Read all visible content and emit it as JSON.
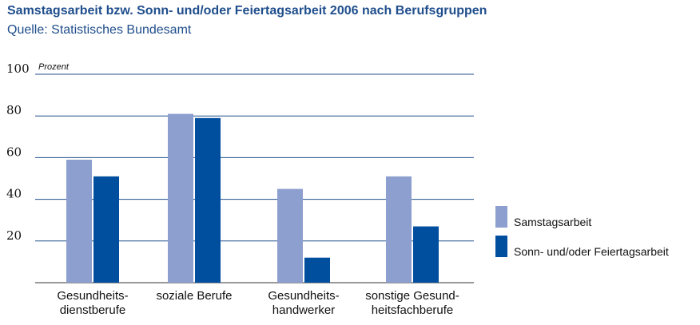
{
  "title": "Samstagsarbeit bzw. Sonn- und/oder Feiertagsarbeit 2006 nach Berufsgruppen",
  "subtitle": "Quelle: Statistisches Bundesamt",
  "chart_data": {
    "type": "bar",
    "ylabel": "Prozent",
    "ylim": [
      0,
      100
    ],
    "yticks": [
      20,
      40,
      60,
      80,
      100
    ],
    "grid": true,
    "legend_position": "right",
    "categories": [
      [
        "Gesundheits-",
        "dienstberufe"
      ],
      [
        "soziale Berufe"
      ],
      [
        "Gesundheits-",
        "handwerker"
      ],
      [
        "sonstige Gesund-",
        "heitsfachberufe"
      ]
    ],
    "series": [
      {
        "name": "Samstagsarbeit",
        "color": "#8c9fce",
        "values": [
          59,
          81,
          45,
          51
        ]
      },
      {
        "name": "Sonn- und/oder Feiertagsarbeit",
        "color": "#004f9f",
        "values": [
          51,
          79,
          12,
          27
        ]
      }
    ]
  }
}
